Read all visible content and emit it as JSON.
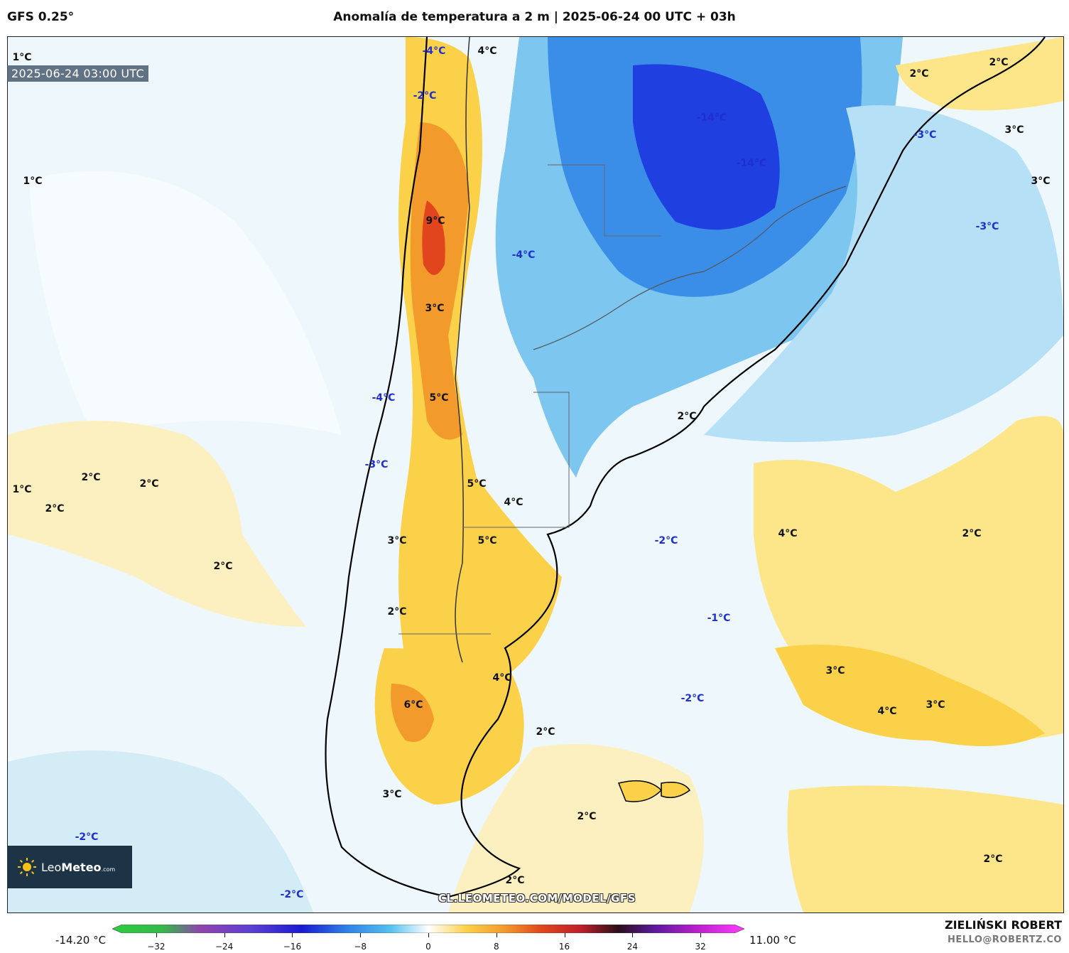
{
  "header": {
    "model": "GFS 0.25°",
    "title": "Anomalía de temperatura a 2 m | 2025-06-24 00 UTC + 03h"
  },
  "map": {
    "timestamp": "2025-06-24 03:00 UTC",
    "watermark": "CL.LEOMETEO.COM/MODEL/GFS",
    "logo": {
      "brand_light": "Leo",
      "brand_bold": "Meteo",
      "suffix": ".com"
    },
    "labels": [
      {
        "text": "1°C",
        "sign": "pos"
      },
      {
        "text": "-4°C",
        "sign": "neg"
      },
      {
        "text": "4°C",
        "sign": "pos"
      },
      {
        "text": "-2°C",
        "sign": "neg"
      },
      {
        "text": "1°C",
        "sign": "pos"
      },
      {
        "text": "9°C",
        "sign": "pos"
      },
      {
        "text": "-14°C",
        "sign": "neg"
      },
      {
        "text": "-14°C",
        "sign": "neg"
      },
      {
        "text": "2°C",
        "sign": "pos"
      },
      {
        "text": "2°C",
        "sign": "pos"
      },
      {
        "text": "-3°C",
        "sign": "neg"
      },
      {
        "text": "3°C",
        "sign": "pos"
      },
      {
        "text": "3°C",
        "sign": "pos"
      },
      {
        "text": "-3°C",
        "sign": "neg"
      },
      {
        "text": "-4°C",
        "sign": "neg"
      },
      {
        "text": "3°C",
        "sign": "pos"
      },
      {
        "text": "-4°C",
        "sign": "neg"
      },
      {
        "text": "5°C",
        "sign": "pos"
      },
      {
        "text": "2°C",
        "sign": "pos"
      },
      {
        "text": "-3°C",
        "sign": "neg"
      },
      {
        "text": "2°C",
        "sign": "pos"
      },
      {
        "text": "2°C",
        "sign": "pos"
      },
      {
        "text": "1°C",
        "sign": "pos"
      },
      {
        "text": "2°C",
        "sign": "pos"
      },
      {
        "text": "5°C",
        "sign": "pos"
      },
      {
        "text": "4°C",
        "sign": "pos"
      },
      {
        "text": "3°C",
        "sign": "pos"
      },
      {
        "text": "5°C",
        "sign": "pos"
      },
      {
        "text": "-2°C",
        "sign": "neg"
      },
      {
        "text": "4°C",
        "sign": "pos"
      },
      {
        "text": "2°C",
        "sign": "pos"
      },
      {
        "text": "2°C",
        "sign": "pos"
      },
      {
        "text": "2°C",
        "sign": "pos"
      },
      {
        "text": "-1°C",
        "sign": "neg"
      },
      {
        "text": "4°C",
        "sign": "pos"
      },
      {
        "text": "3°C",
        "sign": "pos"
      },
      {
        "text": "6°C",
        "sign": "pos"
      },
      {
        "text": "2°C",
        "sign": "pos"
      },
      {
        "text": "-2°C",
        "sign": "neg"
      },
      {
        "text": "4°C",
        "sign": "pos"
      },
      {
        "text": "3°C",
        "sign": "pos"
      },
      {
        "text": "3°C",
        "sign": "pos"
      },
      {
        "text": "2°C",
        "sign": "pos"
      },
      {
        "text": "-2°C",
        "sign": "neg"
      },
      {
        "text": "2°C",
        "sign": "pos"
      },
      {
        "text": "-2°C",
        "sign": "neg"
      },
      {
        "text": "2°C",
        "sign": "pos"
      }
    ]
  },
  "colorbar": {
    "min_label": "-14.20 °C",
    "max_label": "11.00 °C",
    "ticks": [
      "−32",
      "−24",
      "−16",
      "−8",
      "0",
      "8",
      "16",
      "24",
      "32"
    ],
    "range": [
      -36,
      36
    ]
  },
  "credits": {
    "author": "ZIELIŃSKI ROBERT",
    "email": "HELLO@ROBERTZ.CO"
  }
}
